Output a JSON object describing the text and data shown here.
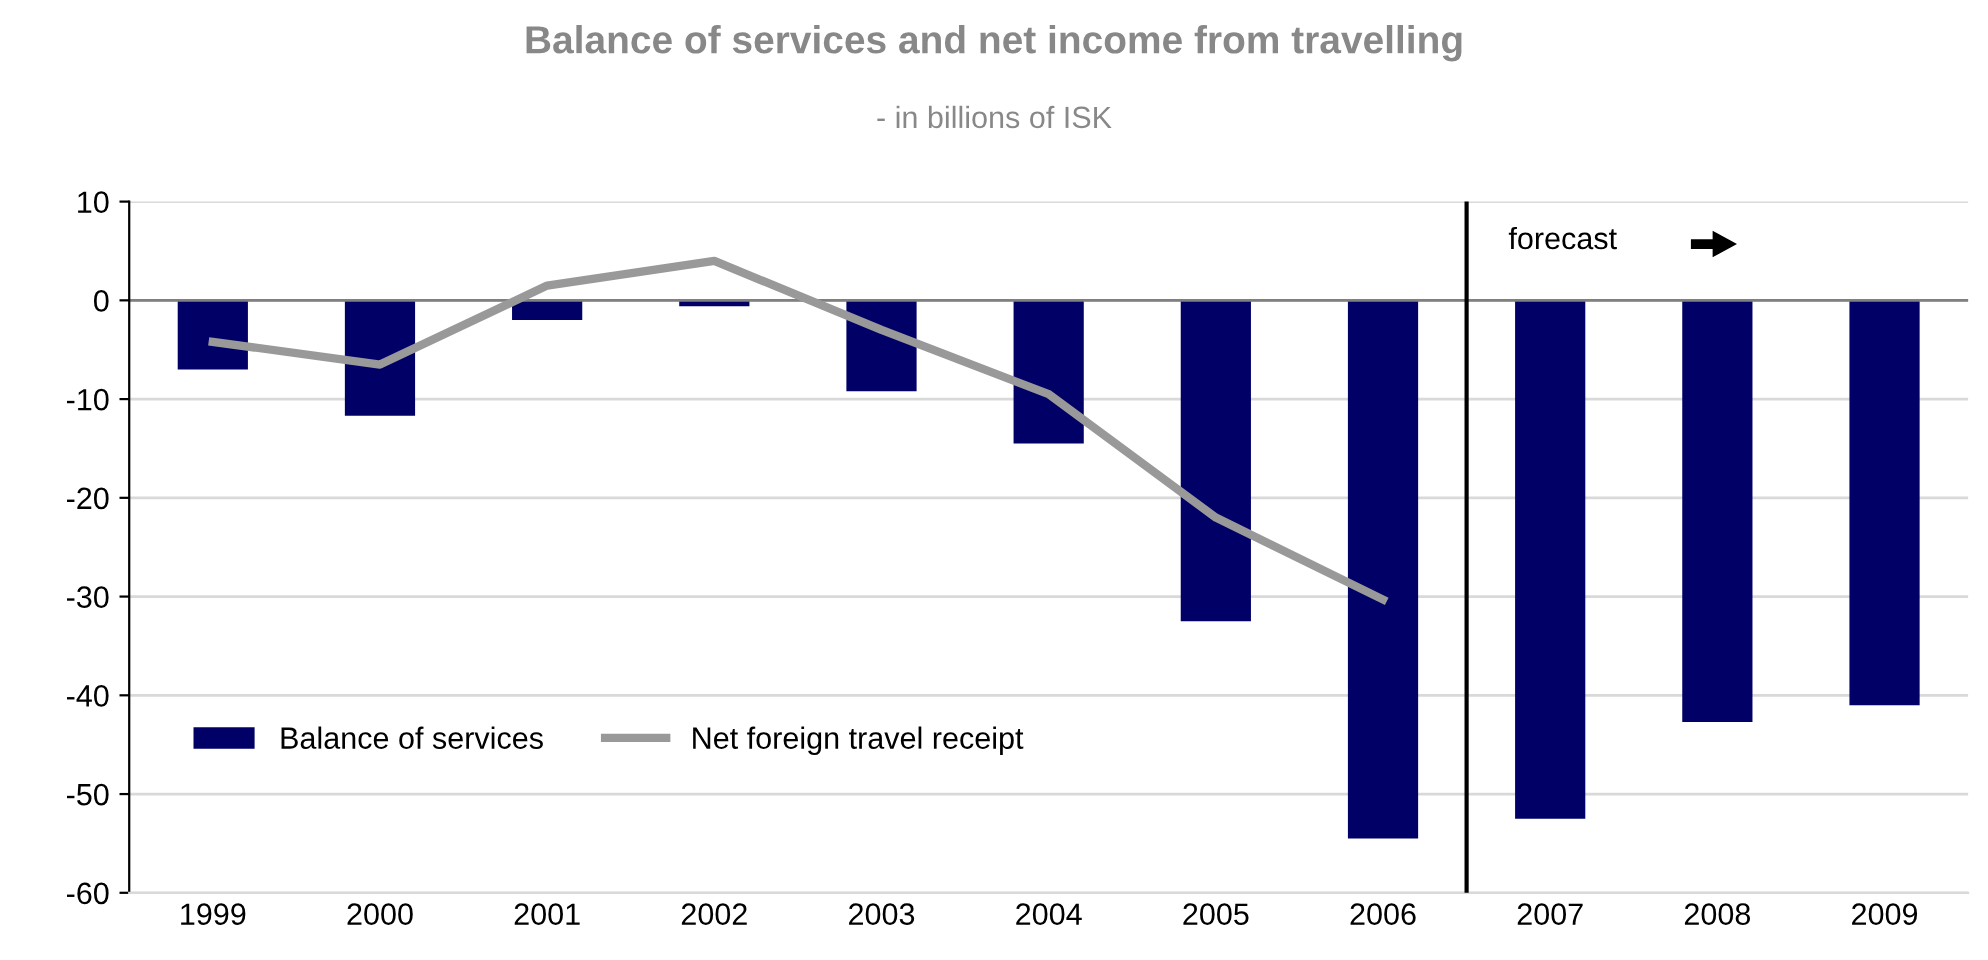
{
  "chart_data": {
    "type": "bar",
    "title": "Balance of services and net income from travelling",
    "subtitle": "- in billions of ISK",
    "x": [
      1999,
      2000,
      2001,
      2002,
      2003,
      2004,
      2005,
      2006,
      2007,
      2008,
      2009
    ],
    "xlim": [
      1998.5,
      2009.5
    ],
    "xticks": [
      1999,
      2000,
      2001,
      2002,
      2003,
      2004,
      2005,
      2006,
      2007,
      2008,
      2009
    ],
    "series": [
      {
        "name": "Balance of services",
        "color": "#000066",
        "values": [
          -7,
          -11.7,
          -2,
          -0.6,
          -9.2,
          -14.5,
          -32.5,
          -54.5,
          -52.5,
          -42.7,
          -41
        ]
      },
      {
        "name": "Net foreign travel receipt",
        "type": "line",
        "color": "#999999",
        "values": [
          -4.2,
          -6.5,
          1.5,
          4,
          -3,
          -9.5,
          -22,
          -30.3,
          null,
          null,
          null
        ]
      }
    ],
    "ylim": [
      -60,
      10
    ],
    "yticks": [
      -60,
      -50,
      -40,
      -30,
      -20,
      -10,
      0,
      10
    ],
    "grid": "y",
    "legend": "bottom left",
    "marker": "none",
    "line_style": "solid",
    "ref_lines": [
      {
        "axis": "x",
        "value": 2006.5,
        "label": "forecast",
        "color": "#000000"
      }
    ]
  }
}
